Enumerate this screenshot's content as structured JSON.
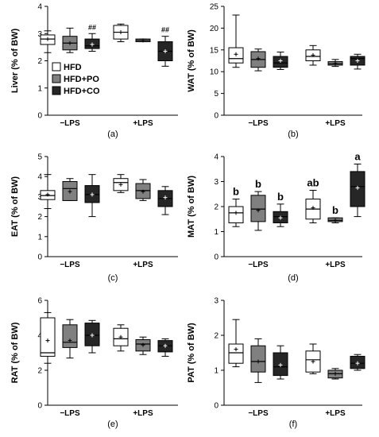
{
  "colors": {
    "HFD": "#ffffff",
    "HFD+PO": "#808080",
    "HFD+CO": "#262626"
  },
  "legend": {
    "items": [
      "HFD",
      "HFD+PO",
      "HFD+CO"
    ]
  },
  "chart_data": [
    {
      "panel": "(a)",
      "type": "boxplot",
      "ylabel": "Liver (% of BW)",
      "ylim": [
        0,
        4
      ],
      "yticks": [
        "0",
        "1",
        "2",
        "3",
        "4"
      ],
      "categories": [
        "−LPS",
        "+LPS"
      ],
      "series": [
        {
          "name": "HFD",
          "boxes": [
            {
              "min": 2.3,
              "q1": 2.6,
              "median": 2.8,
              "q3": 2.95,
              "max": 3.1,
              "mean": 2.8
            },
            {
              "min": 2.7,
              "q1": 2.8,
              "median": 3.05,
              "q3": 3.3,
              "max": 3.35,
              "mean": 3.05
            }
          ]
        },
        {
          "name": "HFD+PO",
          "boxes": [
            {
              "min": 2.3,
              "q1": 2.4,
              "median": 2.65,
              "q3": 2.9,
              "max": 3.2,
              "mean": 2.65
            },
            {
              "min": 2.7,
              "q1": 2.7,
              "median": 2.75,
              "q3": 2.8,
              "max": 2.8,
              "mean": 2.75
            }
          ]
        },
        {
          "name": "HFD+CO",
          "boxes": [
            {
              "min": 2.35,
              "q1": 2.45,
              "median": 2.55,
              "q3": 2.8,
              "max": 3.0,
              "mean": 2.6
            },
            {
              "min": 1.8,
              "q1": 2.0,
              "median": 2.35,
              "q3": 2.7,
              "max": 2.9,
              "mean": 2.35
            }
          ]
        }
      ],
      "annotations": [
        {
          "group": 0,
          "series": 2,
          "text": "##"
        },
        {
          "group": 1,
          "series": 2,
          "text": "##"
        }
      ],
      "legend": "inside-left"
    },
    {
      "panel": "(b)",
      "type": "boxplot",
      "ylabel": "WAT (% of BW)",
      "ylim": [
        0,
        25
      ],
      "yticks": [
        "0",
        "5",
        "10",
        "15",
        "20",
        "25"
      ],
      "categories": [
        "−LPS",
        "+LPS"
      ],
      "series": [
        {
          "name": "HFD",
          "boxes": [
            {
              "min": 11,
              "q1": 12,
              "median": 13,
              "q3": 15.5,
              "max": 23,
              "mean": 14
            },
            {
              "min": 11.5,
              "q1": 12.5,
              "median": 13.5,
              "q3": 15,
              "max": 16,
              "mean": 13.8
            }
          ]
        },
        {
          "name": "HFD+PO",
          "boxes": [
            {
              "min": 10.2,
              "q1": 11,
              "median": 12.8,
              "q3": 14.6,
              "max": 15.2,
              "mean": 13
            }
          ]
        },
        {
          "name": "HFD+CO",
          "boxes": [
            {
              "min": 10.5,
              "q1": 11,
              "median": 12,
              "q3": 13.5,
              "max": 14.5,
              "mean": 12.5
            },
            {
              "min": 10.6,
              "q1": 11.5,
              "median": 13,
              "q3": 13.5,
              "max": 14,
              "mean": 12.5
            }
          ]
        }
      ],
      "extra_boxes": [
        {
          "series": 1,
          "group": 1,
          "box": {
            "min": 11.2,
            "q1": 11.5,
            "median": 11.8,
            "q3": 12.3,
            "max": 12.8,
            "mean": 11.9
          }
        }
      ]
    },
    {
      "panel": "(c)",
      "type": "boxplot",
      "ylabel": "EAT (% of BW)",
      "ylim": [
        0,
        5
      ],
      "yticks": [
        "0",
        "1",
        "2",
        "3",
        "4",
        "5"
      ],
      "categories": [
        "−LPS",
        "+LPS"
      ],
      "series": [
        {
          "name": "HFD",
          "boxes": [
            {
              "min": 2.4,
              "q1": 2.85,
              "median": 3.05,
              "q3": 3.3,
              "max": 4.1,
              "mean": 3.1
            },
            {
              "min": 3.2,
              "q1": 3.3,
              "median": 3.7,
              "q3": 3.9,
              "max": 4.1,
              "mean": 3.6
            }
          ]
        },
        {
          "name": "HFD+PO",
          "boxes": [
            {
              "min": 2.8,
              "q1": 2.8,
              "median": 3.4,
              "q3": 3.75,
              "max": 3.9,
              "mean": 3.25
            },
            {
              "min": 2.8,
              "q1": 2.9,
              "median": 3.3,
              "q3": 3.65,
              "max": 3.85,
              "mean": 3.25
            }
          ]
        },
        {
          "name": "HFD+CO",
          "boxes": [
            {
              "min": 2.0,
              "q1": 2.7,
              "median": 3.1,
              "q3": 3.55,
              "max": 4.1,
              "mean": 3.1
            },
            {
              "min": 2.1,
              "q1": 2.5,
              "median": 2.9,
              "q3": 3.3,
              "max": 3.5,
              "mean": 2.95
            }
          ]
        }
      ]
    },
    {
      "panel": "(d)",
      "type": "boxplot",
      "ylabel": "MAT (% of BW)",
      "ylim": [
        0,
        4
      ],
      "yticks": [
        "0",
        "1",
        "2",
        "3",
        "4"
      ],
      "categories": [
        "−LPS",
        "+LPS"
      ],
      "series": [
        {
          "name": "HFD",
          "boxes": [
            {
              "min": 1.2,
              "q1": 1.35,
              "median": 1.75,
              "q3": 2.0,
              "max": 2.3,
              "mean": 1.75
            },
            {
              "min": 1.35,
              "q1": 1.5,
              "median": 1.9,
              "q3": 2.3,
              "max": 2.65,
              "mean": 1.95
            }
          ]
        },
        {
          "name": "HFD+PO",
          "boxes": [
            {
              "min": 1.05,
              "q1": 1.4,
              "median": 1.9,
              "q3": 2.45,
              "max": 2.6,
              "mean": 1.85
            },
            {
              "min": 1.35,
              "q1": 1.4,
              "median": 1.45,
              "q3": 1.55,
              "max": 1.55,
              "mean": 1.45
            }
          ]
        },
        {
          "name": "HFD+CO",
          "boxes": [
            {
              "min": 1.2,
              "q1": 1.35,
              "median": 1.6,
              "q3": 1.8,
              "max": 2.1,
              "mean": 1.55
            },
            {
              "min": 1.6,
              "q1": 2.0,
              "median": 2.8,
              "q3": 3.4,
              "max": 3.7,
              "mean": 2.75
            }
          ]
        }
      ],
      "annotations": [
        {
          "group": 0,
          "series": 0,
          "text": "b"
        },
        {
          "group": 0,
          "series": 1,
          "text": "b"
        },
        {
          "group": 0,
          "series": 2,
          "text": "b"
        },
        {
          "group": 1,
          "series": 0,
          "text": "ab"
        },
        {
          "group": 1,
          "series": 1,
          "text": "b"
        },
        {
          "group": 1,
          "series": 2,
          "text": "a"
        }
      ]
    },
    {
      "panel": "(e)",
      "type": "boxplot",
      "ylabel": "RAT (% of BW)",
      "ylim": [
        0,
        6
      ],
      "yticks": [
        "0",
        "2",
        "4",
        "6"
      ],
      "categories": [
        "−LPS",
        "+LPS"
      ],
      "series": [
        {
          "name": "HFD",
          "boxes": [
            {
              "min": 2.4,
              "q1": 2.8,
              "median": 3.0,
              "q3": 5.0,
              "max": 5.3,
              "mean": 3.7
            },
            {
              "min": 3.1,
              "q1": 3.4,
              "median": 3.8,
              "q3": 4.4,
              "max": 4.6,
              "mean": 3.9
            }
          ]
        },
        {
          "name": "HFD+PO",
          "boxes": [
            {
              "min": 2.7,
              "q1": 3.3,
              "median": 3.6,
              "q3": 4.6,
              "max": 4.9,
              "mean": 3.7
            },
            {
              "min": 2.9,
              "q1": 3.1,
              "median": 3.5,
              "q3": 3.75,
              "max": 3.9,
              "mean": 3.45
            }
          ]
        },
        {
          "name": "HFD+CO",
          "boxes": [
            {
              "min": 3.0,
              "q1": 3.4,
              "median": 4.0,
              "q3": 4.7,
              "max": 4.85,
              "mean": 4.0
            },
            {
              "min": 2.8,
              "q1": 3.05,
              "median": 3.4,
              "q3": 3.7,
              "max": 3.8,
              "mean": 3.4
            }
          ]
        }
      ]
    },
    {
      "panel": "(f)",
      "type": "boxplot",
      "ylabel": "PAT (% of BW)",
      "ylim": [
        0,
        3
      ],
      "yticks": [
        "0",
        "1",
        "2",
        "3"
      ],
      "categories": [
        "−LPS",
        "+LPS"
      ],
      "series": [
        {
          "name": "HFD",
          "boxes": [
            {
              "min": 1.1,
              "q1": 1.2,
              "median": 1.5,
              "q3": 1.75,
              "max": 2.45,
              "mean": 1.6
            },
            {
              "min": 0.9,
              "q1": 0.95,
              "median": 1.3,
              "q3": 1.55,
              "max": 1.75,
              "mean": 1.25
            }
          ]
        },
        {
          "name": "HFD+PO",
          "boxes": [
            {
              "min": 0.65,
              "q1": 0.95,
              "median": 1.25,
              "q3": 1.7,
              "max": 1.9,
              "mean": 1.25
            },
            {
              "min": 0.75,
              "q1": 0.78,
              "median": 0.9,
              "q3": 1.0,
              "max": 1.05,
              "mean": 0.9
            }
          ]
        },
        {
          "name": "HFD+CO",
          "boxes": [
            {
              "min": 0.75,
              "q1": 0.85,
              "median": 1.1,
              "q3": 1.5,
              "max": 1.7,
              "mean": 1.15
            },
            {
              "min": 1.0,
              "q1": 1.05,
              "median": 1.2,
              "q3": 1.4,
              "max": 1.45,
              "mean": 1.2
            }
          ]
        }
      ]
    }
  ]
}
